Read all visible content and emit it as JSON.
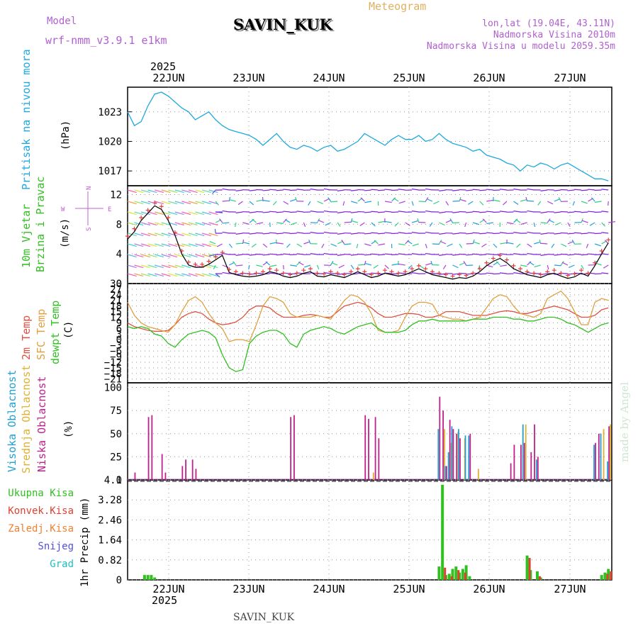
{
  "header": {
    "model_label": "Model",
    "model_name": "wrf-nmm_v3.9.1 e1km",
    "station": "SAVIN_KUK",
    "meteogram": "Meteogram",
    "lonlat": "lon,lat (19.04E, 43.11N)",
    "altitude": "Nadmorska Visina 2010m",
    "altitude_model": "Nadmorska Visina u modelu 2059.35m",
    "year_top": "2025",
    "year_bottom": "2025",
    "footer_station": "SAVIN_KUK",
    "watermark": "made by Angel"
  },
  "days": [
    "22JUN",
    "23JUN",
    "24JUN",
    "25JUN",
    "26JUN",
    "27JUN"
  ],
  "panels": {
    "pressure": {
      "title": "Pritisak na nivou mora",
      "unit": "(hPa)"
    },
    "wind": {
      "title1": "10m Vjetar",
      "title2": "Brzina i Pravac",
      "unit": "(m/s)",
      "compass_e": "E",
      "compass_w": "W",
      "compass_n": "N",
      "compass_s": "S"
    },
    "temp": {
      "l1": "2m Temp",
      "l2": "SFC Temp",
      "l3": "dewpt Temp",
      "unit": "(C)"
    },
    "cloud": {
      "l1": "Visoka Oblacnost",
      "l2": "Srednja Oblacnost",
      "l3": "Niska Oblacnost",
      "unit": "(%)"
    },
    "precip": {
      "l1": "Ukupna Kisa",
      "l2": "Konvek.Kisa",
      "l3": "Zaledj.Kisa",
      "l4": "Snijeg",
      "l5": "Grad",
      "unit": "1hr Precip (mm)"
    }
  },
  "colors": {
    "pressure": "#1ea8e0",
    "t2m": "#e05040",
    "tsfc": "#e0a040",
    "dewpt": "#30c020",
    "cloud_high": "#20a0d0",
    "cloud_mid": "#e0b030",
    "cloud_low": "#c0208c",
    "precip_total": "#30c020",
    "precip_conv": "#e04030",
    "precip_frz": "#f08030",
    "precip_snow": "#5050e0",
    "precip_hail": "#20c0c0",
    "title_green": "#30c020",
    "title_red": "#e05040",
    "title_orange": "#e0a040",
    "title_magenta": "#c0208c",
    "title_cyan": "#20a0d0",
    "header_purple": "#b060d0",
    "header_orange": "#e0b060"
  },
  "chart_data": [
    {
      "type": "line",
      "title": "Pritisak na nivou mora",
      "ylabel": "(hPa)",
      "yticks": [
        1017,
        1020,
        1023
      ],
      "ylim": [
        1015.5,
        1025.5
      ],
      "x": [
        0,
        2,
        4,
        6,
        8,
        10,
        12,
        14,
        16,
        18,
        20,
        22,
        24,
        26,
        28,
        30,
        32,
        34,
        36,
        38,
        40,
        42,
        44,
        46,
        48,
        50,
        52,
        54,
        56,
        58,
        60,
        62,
        64,
        66,
        68,
        70,
        72,
        74,
        76,
        78,
        80,
        82,
        84,
        86,
        88,
        90,
        92,
        94,
        96,
        98,
        100,
        102,
        104,
        106,
        108,
        110,
        112,
        114,
        116,
        118,
        120,
        122,
        124,
        126,
        128,
        130,
        132,
        134,
        136,
        138,
        140,
        142
      ],
      "series": [
        {
          "values": [
            1023.0,
            1021.6,
            1022.0,
            1023.6,
            1024.8,
            1025.0,
            1024.6,
            1024.0,
            1023.4,
            1023.0,
            1022.2,
            1022.6,
            1023.0,
            1022.2,
            1021.6,
            1021.2,
            1021.0,
            1020.8,
            1020.6,
            1020.2,
            1019.6,
            1020.2,
            1020.8,
            1020.0,
            1019.4,
            1019.2,
            1019.6,
            1019.4,
            1019.0,
            1019.4,
            1019.6,
            1019.0,
            1019.2,
            1019.6,
            1020.0,
            1020.8,
            1020.4,
            1020.0,
            1019.6,
            1020.2,
            1020.6,
            1020.2,
            1020.2,
            1020.6,
            1020.0,
            1020.2,
            1020.8,
            1020.2,
            1019.8,
            1019.6,
            1019.4,
            1019.0,
            1019.2,
            1018.6,
            1018.4,
            1018.2,
            1017.8,
            1017.6,
            1017.0,
            1017.6,
            1017.4,
            1017.8,
            1017.6,
            1017.2,
            1017.6,
            1017.8,
            1017.4,
            1017.0,
            1016.6,
            1016.2,
            1016.2,
            1016.0
          ]
        }
      ]
    },
    {
      "type": "line",
      "title": "10m Vjetar Brzina i Pravac",
      "ylabel": "(m/s)",
      "yticks": [
        0,
        4,
        8,
        12
      ],
      "ylim": [
        0,
        13.2
      ],
      "x": [
        0,
        2,
        4,
        6,
        8,
        10,
        12,
        14,
        16,
        18,
        20,
        22,
        24,
        26,
        28,
        30,
        32,
        34,
        36,
        38,
        40,
        42,
        44,
        46,
        48,
        50,
        52,
        54,
        56,
        58,
        60,
        62,
        64,
        66,
        68,
        70,
        72,
        74,
        76,
        78,
        80,
        82,
        84,
        86,
        88,
        90,
        92,
        94,
        96,
        98,
        100,
        102,
        104,
        106,
        108,
        110,
        112,
        114,
        116,
        118,
        120,
        122,
        124,
        126,
        128,
        130,
        132,
        134,
        136,
        138,
        140,
        142
      ],
      "series": [
        {
          "name": "speed",
          "values": [
            6,
            7,
            8.5,
            9.5,
            10.5,
            10,
            8.5,
            6.5,
            4,
            2.5,
            2.2,
            2.2,
            2.6,
            3.2,
            3.8,
            1.5,
            1.2,
            1.0,
            0.9,
            1.0,
            1.2,
            1.6,
            1.4,
            1.0,
            0.8,
            1.0,
            1.4,
            1.6,
            1.0,
            0.9,
            1.2,
            1.0,
            0.8,
            1.2,
            1.6,
            1.2,
            0.8,
            1.0,
            1.4,
            1.2,
            1.0,
            1.2,
            1.6,
            2.0,
            1.6,
            1.2,
            1.0,
            0.8,
            0.6,
            0.8,
            0.7,
            1.0,
            1.6,
            2.4,
            3.0,
            3.4,
            2.8,
            2.0,
            1.6,
            1.2,
            1.0,
            0.8,
            1.2,
            1.4,
            1.0,
            0.7,
            0.9,
            1.4,
            1.0,
            2.4,
            4.0,
            5.5
          ]
        }
      ]
    },
    {
      "type": "line",
      "title": "2m Temp / SFC Temp / dewpt Temp",
      "ylabel": "(C)",
      "yticks": [
        -21,
        -18,
        -15,
        -12,
        -9,
        -6,
        -3,
        0,
        3,
        6,
        9,
        12,
        15,
        18,
        21,
        24,
        27,
        30
      ],
      "ylim": [
        -23,
        30
      ],
      "x": [
        0,
        2,
        4,
        6,
        8,
        10,
        12,
        14,
        16,
        18,
        20,
        22,
        24,
        26,
        28,
        30,
        32,
        34,
        36,
        38,
        40,
        42,
        44,
        46,
        48,
        50,
        52,
        54,
        56,
        58,
        60,
        62,
        64,
        66,
        68,
        70,
        72,
        74,
        76,
        78,
        80,
        82,
        84,
        86,
        88,
        90,
        92,
        94,
        96,
        98,
        100,
        102,
        104,
        106,
        108,
        110,
        112,
        114,
        116,
        118,
        120,
        122,
        124,
        126,
        128,
        130,
        132,
        134,
        136,
        138,
        140,
        142
      ],
      "series": [
        {
          "name": "2m Temp",
          "values": [
            9,
            7,
            6,
            5,
            4.5,
            4.5,
            5,
            8,
            12,
            14,
            15,
            14,
            11,
            9,
            8,
            8.5,
            9.5,
            12,
            16,
            18,
            18,
            17,
            14,
            12,
            12,
            12,
            13,
            13.5,
            13,
            12,
            12,
            15,
            18,
            19,
            20,
            19,
            17,
            14,
            12,
            12,
            13,
            14,
            14,
            13.5,
            12,
            12,
            13,
            15,
            15,
            15,
            14,
            13,
            13,
            13,
            14,
            15,
            15.5,
            15,
            14,
            14,
            15,
            16,
            17,
            18,
            17,
            16,
            14,
            12,
            12,
            13,
            16,
            17
          ]
        },
        {
          "name": "SFC Temp",
          "values": [
            20,
            13,
            9,
            7,
            6,
            5,
            4,
            8,
            15,
            21,
            23,
            20,
            14,
            9,
            6,
            -1,
            0,
            0,
            -1,
            8,
            18,
            23,
            22,
            20,
            14,
            12,
            12,
            12,
            13,
            12,
            11,
            16,
            21,
            24,
            23,
            20,
            14,
            5,
            4,
            4,
            5,
            12,
            18,
            20,
            20,
            19,
            13,
            12,
            11,
            11,
            10,
            11,
            12,
            17,
            22,
            24,
            23,
            18,
            14,
            13,
            12,
            14,
            22,
            24,
            26,
            22,
            15,
            8,
            8,
            20,
            22,
            21
          ]
        },
        {
          "name": "dewpt Temp",
          "values": [
            7,
            6,
            7,
            6,
            3,
            2,
            -2,
            -4,
            0,
            3,
            4,
            5,
            4,
            1,
            -8,
            -15,
            -17,
            -16,
            -2,
            2,
            4,
            5,
            5,
            3,
            -2,
            -4,
            3,
            5,
            6,
            7,
            6,
            4,
            3,
            5,
            7,
            8,
            9,
            6,
            4,
            4,
            4,
            5,
            8,
            10,
            10,
            11,
            10,
            10,
            10,
            10,
            10,
            11,
            11,
            11,
            12,
            12,
            12,
            11,
            11,
            10,
            10,
            11,
            12,
            12,
            11,
            9,
            8,
            6,
            4,
            6,
            8,
            9
          ]
        }
      ]
    },
    {
      "type": "bar",
      "title": "Visoka / Srednja / Niska Oblacnost",
      "ylabel": "(%)",
      "yticks": [
        0,
        25,
        50,
        75,
        100
      ],
      "ylim": [
        0,
        105
      ],
      "bars": {
        "low": [
          [
            2,
            8
          ],
          [
            6,
            68
          ],
          [
            7,
            70
          ],
          [
            10,
            28
          ],
          [
            11,
            8
          ],
          [
            16,
            15
          ],
          [
            17,
            22
          ],
          [
            19,
            22
          ],
          [
            20,
            12
          ],
          [
            48,
            68
          ],
          [
            49,
            70
          ],
          [
            70,
            70
          ],
          [
            71,
            66
          ],
          [
            73,
            68
          ],
          [
            74,
            45
          ],
          [
            92,
            90
          ],
          [
            93,
            75
          ],
          [
            94,
            15
          ],
          [
            95,
            65
          ],
          [
            96,
            55
          ],
          [
            97,
            50
          ],
          [
            98,
            45
          ],
          [
            101,
            50
          ],
          [
            113,
            18
          ],
          [
            114,
            38
          ],
          [
            116,
            38
          ],
          [
            117,
            40
          ],
          [
            119,
            30
          ],
          [
            120,
            60
          ],
          [
            121,
            25
          ],
          [
            138,
            40
          ],
          [
            139,
            50
          ],
          [
            142,
            58
          ]
        ],
        "mid": [
          [
            72,
            8
          ],
          [
            93,
            55
          ],
          [
            95,
            40
          ],
          [
            97,
            52
          ],
          [
            99,
            45
          ],
          [
            103,
            12
          ],
          [
            117,
            60
          ],
          [
            140,
            55
          ],
          [
            142,
            60
          ]
        ],
        "high": [
          [
            92,
            55
          ],
          [
            94,
            15
          ],
          [
            95,
            30
          ],
          [
            96,
            58
          ],
          [
            98,
            55
          ],
          [
            100,
            48
          ],
          [
            101,
            48
          ],
          [
            117,
            60
          ],
          [
            121,
            22
          ],
          [
            138,
            38
          ],
          [
            140,
            50
          ],
          [
            142,
            20
          ]
        ]
      }
    },
    {
      "type": "bar",
      "title": "1hr Precip",
      "ylabel": "1hr Precip (mm)",
      "yticks": [
        0,
        0.82,
        1.64,
        2.46,
        3.28,
        4.1
      ],
      "ylim": [
        0,
        4.1
      ],
      "bars": {
        "total": [
          [
            5,
            0.2
          ],
          [
            6,
            0.2
          ],
          [
            7,
            0.2
          ],
          [
            8,
            0.1
          ],
          [
            92,
            0.55
          ],
          [
            93,
            3.9
          ],
          [
            94,
            0.2
          ],
          [
            95,
            0.25
          ],
          [
            96,
            0.45
          ],
          [
            97,
            0.55
          ],
          [
            98,
            0.3
          ],
          [
            99,
            0.45
          ],
          [
            100,
            0.6
          ],
          [
            101,
            0.15
          ],
          [
            118,
            1.0
          ],
          [
            119,
            0.4
          ],
          [
            121,
            0.35
          ],
          [
            122,
            0.1
          ],
          [
            140,
            0.2
          ],
          [
            141,
            0.3
          ],
          [
            142,
            0.45
          ]
        ],
        "conv": [
          [
            93,
            0.5
          ],
          [
            95,
            0.15
          ],
          [
            97,
            0.4
          ],
          [
            99,
            0.3
          ],
          [
            118,
            0.9
          ],
          [
            121,
            0.15
          ],
          [
            141,
            0.25
          ],
          [
            142,
            0.35
          ]
        ]
      }
    }
  ]
}
